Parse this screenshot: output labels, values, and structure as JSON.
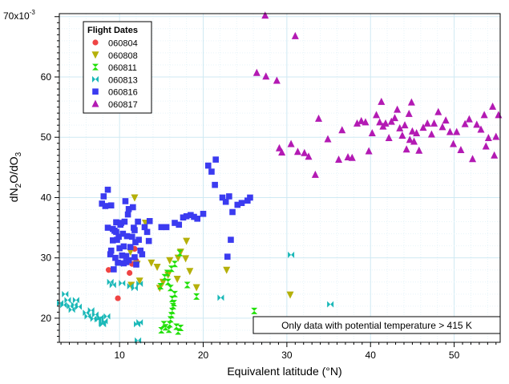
{
  "chart_data": {
    "type": "scatter",
    "title": "",
    "xlabel": "Equivalent latitude (°N)",
    "ylabel_main": "dN",
    "ylabel_sub1": "2",
    "ylabel_mid": "O/dO",
    "ylabel_sub2": "3",
    "y_multiplier_base": "70x10",
    "y_multiplier_exp": "-3",
    "xlim": [
      2.8,
      55.5
    ],
    "ylim": [
      16.0,
      70.5
    ],
    "x_ticks": [
      10,
      20,
      30,
      40,
      50
    ],
    "x_tick_labels": [
      "10",
      "20",
      "30",
      "40",
      "50"
    ],
    "y_ticks": [
      20,
      30,
      40,
      50,
      60
    ],
    "y_tick_labels": [
      "20",
      "30",
      "40",
      "50",
      "60"
    ],
    "grid": true,
    "legend_title": "Flight Dates",
    "legend_placement": "top-left",
    "annotation": "Only data with potential temperature > 415 K",
    "series": [
      {
        "name": "060804",
        "marker": "circle",
        "color": "#ef4444",
        "points": [
          [
            8.7,
            28.0
          ],
          [
            9.8,
            23.3
          ],
          [
            11.5,
            29.0
          ],
          [
            12.0,
            29.5
          ],
          [
            11.8,
            31.5
          ],
          [
            11.2,
            27.5
          ]
        ]
      },
      {
        "name": "060808",
        "marker": "triangle-down",
        "color": "#b5b00a",
        "points": [
          [
            11.8,
            40.0
          ],
          [
            13.1,
            35.8
          ],
          [
            11.3,
            31.0
          ],
          [
            12.1,
            29.0
          ],
          [
            12.4,
            26.2
          ],
          [
            11.4,
            25.5
          ],
          [
            14.5,
            28.5
          ],
          [
            15.2,
            26.0
          ],
          [
            15.8,
            27.2
          ],
          [
            16.9,
            26.5
          ],
          [
            17.3,
            31.0
          ],
          [
            17.9,
            29.9
          ],
          [
            18.4,
            27.8
          ],
          [
            19.2,
            25.1
          ],
          [
            14.8,
            25.0
          ],
          [
            22.8,
            28.0
          ],
          [
            30.4,
            23.9
          ],
          [
            17.0,
            30.0
          ],
          [
            16.0,
            29.6
          ],
          [
            13.8,
            29.2
          ],
          [
            18.0,
            32.8
          ]
        ]
      },
      {
        "name": "060811",
        "marker": "hourglass",
        "color": "#22e00a",
        "points": [
          [
            15.0,
            18.0
          ],
          [
            15.5,
            18.5
          ],
          [
            15.9,
            18.1
          ],
          [
            16.0,
            19.0
          ],
          [
            16.1,
            19.8
          ],
          [
            16.2,
            20.5
          ],
          [
            16.3,
            21.2
          ],
          [
            16.4,
            22.0
          ],
          [
            16.5,
            22.5
          ],
          [
            16.3,
            23.2
          ],
          [
            16.6,
            24.0
          ],
          [
            16.1,
            25.0
          ],
          [
            15.8,
            26.0
          ],
          [
            15.4,
            26.8
          ],
          [
            15.7,
            27.5
          ],
          [
            16.2,
            28.2
          ],
          [
            16.6,
            29.0
          ],
          [
            17.0,
            17.8
          ],
          [
            17.3,
            18.4
          ],
          [
            16.8,
            18.6
          ],
          [
            17.2,
            30.8
          ],
          [
            18.1,
            25.5
          ],
          [
            19.2,
            23.6
          ],
          [
            26.1,
            21.2
          ],
          [
            14.9,
            25.3
          ],
          [
            15.3,
            19.0
          ]
        ]
      },
      {
        "name": "060813",
        "marker": "bowtie",
        "color": "#1ab8b8",
        "points": [
          [
            2.9,
            22.5
          ],
          [
            3.3,
            22.2
          ],
          [
            3.5,
            24.0
          ],
          [
            3.8,
            23.0
          ],
          [
            4.1,
            22.0
          ],
          [
            4.3,
            21.4
          ],
          [
            4.6,
            22.2
          ],
          [
            4.8,
            23.0
          ],
          [
            5.1,
            21.9
          ],
          [
            6.0,
            20.9
          ],
          [
            6.2,
            20.3
          ],
          [
            6.6,
            21.3
          ],
          [
            6.9,
            19.9
          ],
          [
            7.1,
            20.6
          ],
          [
            7.4,
            19.8
          ],
          [
            7.7,
            20.1
          ],
          [
            7.9,
            19.1
          ],
          [
            8.2,
            19.5
          ],
          [
            8.5,
            20.3
          ],
          [
            8.0,
            19.0
          ],
          [
            9.2,
            25.5
          ],
          [
            8.9,
            26.0
          ],
          [
            10.3,
            25.8
          ],
          [
            11.3,
            25.3
          ],
          [
            11.8,
            25.0
          ],
          [
            12.4,
            25.7
          ],
          [
            12.1,
            19.0
          ],
          [
            12.4,
            19.3
          ],
          [
            12.2,
            16.3
          ],
          [
            22.1,
            23.4
          ],
          [
            30.5,
            30.5
          ],
          [
            35.2,
            22.3
          ],
          [
            9.9,
            29.0
          ]
        ]
      },
      {
        "name": "060816",
        "marker": "square",
        "color": "#3b3bf0",
        "points": [
          [
            7.9,
            39.0
          ],
          [
            8.1,
            40.2
          ],
          [
            8.3,
            38.6
          ],
          [
            8.6,
            41.3
          ],
          [
            9.0,
            38.7
          ],
          [
            8.6,
            35.0
          ],
          [
            9.2,
            34.8
          ],
          [
            9.6,
            34.3
          ],
          [
            9.2,
            32.9
          ],
          [
            9.9,
            33.5
          ],
          [
            10.4,
            34.0
          ],
          [
            9.5,
            30.0
          ],
          [
            10.0,
            31.6
          ],
          [
            10.5,
            31.9
          ],
          [
            10.8,
            29.3
          ],
          [
            9.0,
            31.2
          ],
          [
            9.8,
            29.2
          ],
          [
            10.5,
            29.1
          ],
          [
            11.1,
            29.6
          ],
          [
            11.8,
            30.1
          ],
          [
            12.0,
            28.9
          ],
          [
            11.9,
            32.6
          ],
          [
            11.5,
            33.5
          ],
          [
            12.3,
            33.0
          ],
          [
            11.8,
            34.6
          ],
          [
            12.2,
            36.0
          ],
          [
            13.0,
            35.1
          ],
          [
            12.5,
            31.2
          ],
          [
            13.3,
            34.3
          ],
          [
            13.6,
            36.1
          ],
          [
            15.0,
            35.1
          ],
          [
            15.6,
            35.1
          ],
          [
            16.6,
            35.8
          ],
          [
            17.1,
            35.5
          ],
          [
            17.6,
            36.7
          ],
          [
            18.0,
            36.9
          ],
          [
            18.5,
            37.1
          ],
          [
            18.9,
            36.8
          ],
          [
            19.3,
            36.5
          ],
          [
            20.0,
            37.3
          ],
          [
            20.6,
            45.3
          ],
          [
            21.0,
            44.3
          ],
          [
            21.5,
            46.3
          ],
          [
            21.4,
            42.1
          ],
          [
            22.3,
            40.0
          ],
          [
            22.7,
            39.3
          ],
          [
            23.1,
            40.2
          ],
          [
            23.5,
            37.6
          ],
          [
            24.1,
            38.8
          ],
          [
            24.6,
            39.1
          ],
          [
            25.3,
            39.5
          ],
          [
            25.6,
            40.0
          ],
          [
            23.3,
            33.0
          ],
          [
            22.9,
            30.2
          ],
          [
            9.6,
            35.9
          ],
          [
            10.1,
            35.5
          ],
          [
            10.6,
            36.0
          ],
          [
            11.0,
            37.2
          ],
          [
            10.7,
            39.4
          ],
          [
            11.1,
            38.1
          ],
          [
            11.6,
            38.4
          ],
          [
            9.7,
            33.0
          ],
          [
            10.3,
            30.4
          ],
          [
            8.9,
            30.6
          ],
          [
            9.3,
            28.1
          ],
          [
            12.7,
            30.6
          ],
          [
            11.3,
            31.8
          ],
          [
            10.9,
            33.6
          ],
          [
            9.4,
            34.5
          ],
          [
            13.5,
            32.8
          ],
          [
            11.7,
            35.0
          ],
          [
            10.2,
            35.8
          ],
          [
            10.8,
            30.3
          ]
        ]
      },
      {
        "name": "060817",
        "marker": "triangle-up",
        "color": "#b31ab3",
        "points": [
          [
            27.4,
            70.2
          ],
          [
            31.0,
            66.8
          ],
          [
            26.4,
            60.7
          ],
          [
            27.5,
            60.1
          ],
          [
            28.8,
            59.4
          ],
          [
            29.1,
            48.2
          ],
          [
            29.4,
            47.5
          ],
          [
            30.5,
            48.9
          ],
          [
            31.3,
            47.6
          ],
          [
            32.1,
            47.4
          ],
          [
            32.6,
            46.8
          ],
          [
            33.4,
            43.8
          ],
          [
            33.8,
            53.1
          ],
          [
            34.9,
            49.7
          ],
          [
            36.2,
            46.3
          ],
          [
            36.6,
            51.2
          ],
          [
            37.3,
            46.7
          ],
          [
            37.8,
            46.6
          ],
          [
            38.4,
            52.3
          ],
          [
            38.9,
            52.7
          ],
          [
            39.4,
            52.5
          ],
          [
            39.8,
            47.7
          ],
          [
            40.2,
            50.7
          ],
          [
            40.7,
            53.7
          ],
          [
            41.1,
            52.5
          ],
          [
            41.3,
            55.9
          ],
          [
            41.8,
            52.3
          ],
          [
            42.2,
            49.9
          ],
          [
            42.5,
            52.6
          ],
          [
            43.2,
            54.6
          ],
          [
            43.5,
            51.5
          ],
          [
            44.1,
            52.0
          ],
          [
            44.6,
            53.9
          ],
          [
            44.9,
            55.8
          ],
          [
            44.7,
            49.6
          ],
          [
            45.2,
            49.3
          ],
          [
            45.5,
            50.7
          ],
          [
            45.8,
            47.8
          ],
          [
            46.3,
            51.6
          ],
          [
            46.8,
            52.3
          ],
          [
            47.3,
            50.5
          ],
          [
            47.6,
            52.3
          ],
          [
            48.1,
            54.2
          ],
          [
            48.6,
            51.7
          ],
          [
            49.0,
            52.8
          ],
          [
            49.5,
            50.9
          ],
          [
            49.9,
            48.9
          ],
          [
            50.3,
            50.9
          ],
          [
            50.8,
            47.9
          ],
          [
            51.3,
            52.2
          ],
          [
            51.8,
            53.0
          ],
          [
            52.2,
            46.4
          ],
          [
            52.7,
            52.1
          ],
          [
            53.2,
            51.3
          ],
          [
            53.6,
            53.7
          ],
          [
            54.1,
            49.9
          ],
          [
            54.6,
            55.1
          ],
          [
            55.0,
            50.1
          ],
          [
            55.3,
            53.7
          ],
          [
            45.0,
            51.0
          ],
          [
            43.8,
            50.3
          ],
          [
            42.9,
            53.2
          ],
          [
            41.5,
            51.8
          ],
          [
            44.3,
            48.0
          ],
          [
            53.8,
            48.5
          ],
          [
            54.8,
            47.0
          ]
        ]
      }
    ]
  }
}
